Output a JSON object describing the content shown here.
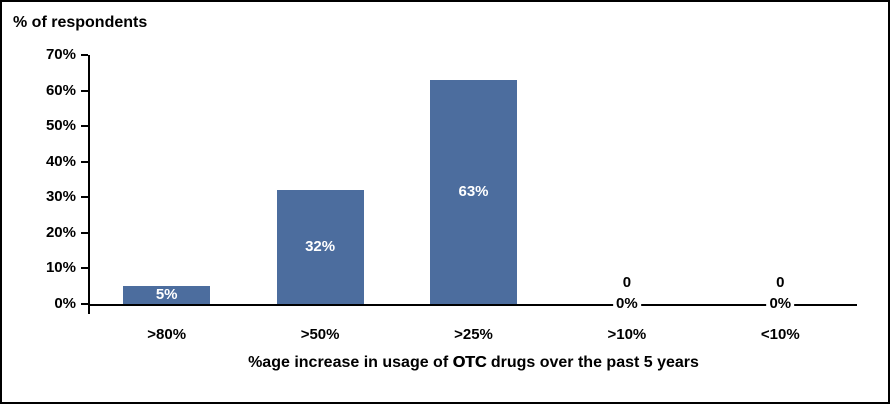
{
  "chart_data": {
    "type": "bar",
    "title": "% of respondents",
    "xlabel": "%age increase in usage of OTC drugs over the past 5 years",
    "xlabel_segments": [
      {
        "text": "%age increase in usage of ",
        "emphasis": false
      },
      {
        "text": "OTC",
        "emphasis": true
      },
      {
        "text": " drugs over the past 5 years",
        "emphasis": false
      }
    ],
    "ylabel": "",
    "categories": [
      ">80%",
      ">50%",
      ">25%",
      ">10%",
      "<10%"
    ],
    "values": [
      5,
      32,
      63,
      0,
      0
    ],
    "bar_labels": [
      "5%",
      "32%",
      "63%",
      "0%",
      "0%"
    ],
    "zero_bar_labels": {
      "upper": "0",
      "lower": "0%"
    },
    "ytick_values": [
      0,
      10,
      20,
      30,
      40,
      50,
      60,
      70
    ],
    "ytick_labels": [
      "0%",
      "10%",
      "20%",
      "30%",
      "40%",
      "50%",
      "60%",
      "70%"
    ],
    "ylim": [
      0,
      70
    ],
    "grid": false,
    "legend": false,
    "colors": {
      "bar_fill": "#4C6D9E",
      "bar_label_text": "#ffffff",
      "axis_line": "#000000",
      "text": "#000000",
      "background": "#ffffff"
    }
  }
}
